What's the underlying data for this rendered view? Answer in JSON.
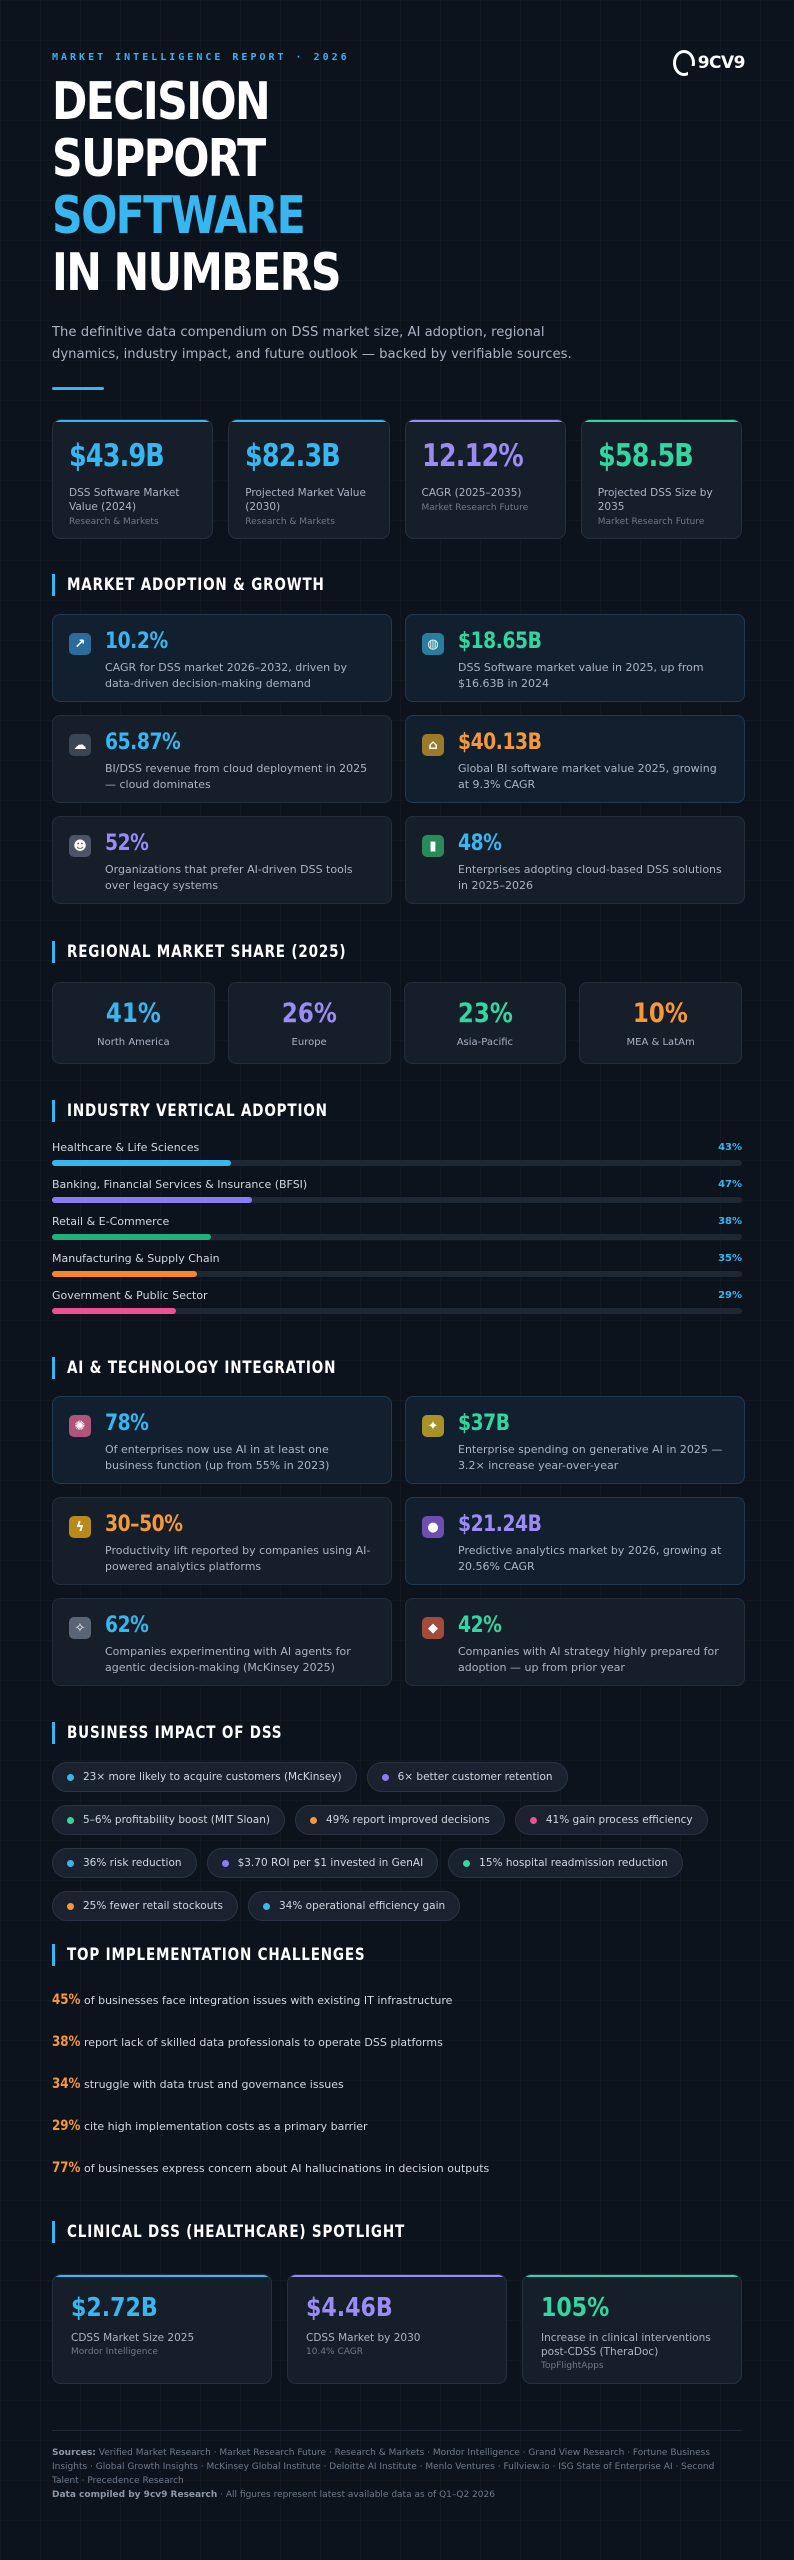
{
  "hero": {
    "eyebrow": "MARKET INTELLIGENCE REPORT · 2026",
    "logo_text": "9CV9",
    "title_line1": "DECISION",
    "title_line2": "SUPPORT",
    "title_line3": "SOFTWARE",
    "title_line4": "IN NUMBERS",
    "subtitle": "The definitive data compendium on DSS market size, AI adoption, regional dynamics, industry impact, and future outlook — backed by verifiable sources."
  },
  "kpis": [
    {
      "value": "$43.9B",
      "label": "DSS Software Market Value (2024)",
      "source": "Research & Markets",
      "color": "#38b6ef"
    },
    {
      "value": "$82.3B",
      "label": "Projected Market Value (2030)",
      "source": "Research & Markets",
      "color": "#38b6ef"
    },
    {
      "value": "12.12%",
      "label": "CAGR (2025–2035)",
      "source": "Market Research Future",
      "color": "#9b8cf5"
    },
    {
      "value": "$58.5B",
      "label": "Projected DSS Size by 2035",
      "source": "Market Research Future",
      "color": "#33d6a0"
    }
  ],
  "sections": {
    "adoption": "MARKET ADOPTION & GROWTH",
    "regional": "REGIONAL MARKET SHARE (2025)",
    "industry": "INDUSTRY VERTICAL ADOPTION",
    "ai": "AI & TECHNOLOGY INTEGRATION",
    "impact": "BUSINESS IMPACT OF DSS",
    "challenges": "TOP IMPLEMENTATION CHALLENGES",
    "clinical": "CLINICAL DSS (HEALTHCARE) SPOTLIGHT"
  },
  "adoption": [
    {
      "icon": "chart-up-icon",
      "value": "10.2%",
      "text": "CAGR for DSS market 2026–2032, driven by data-driven decision-making demand",
      "color": "#38b6ef"
    },
    {
      "icon": "globe-icon",
      "value": "$18.65B",
      "text": "DSS Software market value in 2025, up from $16.63B in 2024",
      "color": "#33d6a0"
    },
    {
      "icon": "cloud-icon",
      "value": "65.87%",
      "text": "BI/DSS revenue from cloud deployment in 2025 — cloud dominates",
      "color": "#38b6ef"
    },
    {
      "icon": "bank-icon",
      "value": "$40.13B",
      "text": "Global BI software market value 2025, growing at 9.3% CAGR",
      "color": "#f5983a"
    },
    {
      "icon": "robot-icon",
      "value": "52%",
      "text": "Organizations that prefer AI-driven DSS tools over legacy systems",
      "color": "#9b8cf5"
    },
    {
      "icon": "bar-chart-icon",
      "value": "48%",
      "text": "Enterprises adopting cloud-based DSS solutions in 2025–2026",
      "color": "#38b6ef"
    }
  ],
  "regions": [
    {
      "value": "41%",
      "label": "North America",
      "color": "#38b6ef"
    },
    {
      "value": "26%",
      "label": "Europe",
      "color": "#9b8cf5"
    },
    {
      "value": "23%",
      "label": "Asia-Pacific",
      "color": "#33d6a0"
    },
    {
      "value": "10%",
      "label": "MEA & LatAm",
      "color": "#f5983a"
    }
  ],
  "industries": [
    {
      "label": "Healthcare & Life Sciences",
      "pct_text": "43%",
      "pct": 0.26,
      "color": "#38b6ef"
    },
    {
      "label": "Banking, Financial Services & Insurance (BFSI)",
      "pct_text": "47%",
      "pct": 0.29,
      "color": "#8b7cf2"
    },
    {
      "label": "Retail & E-Commerce",
      "pct_text": "38%",
      "pct": 0.23,
      "color": "#22b07d"
    },
    {
      "label": "Manufacturing & Supply Chain",
      "pct_text": "35%",
      "pct": 0.21,
      "color": "#f5862a"
    },
    {
      "label": "Government & Public Sector",
      "pct_text": "29%",
      "pct": 0.18,
      "color": "#ef4f93"
    }
  ],
  "ai": [
    {
      "icon": "brain-icon",
      "value": "78%",
      "text": "Of enterprises now use AI in at least one business function (up from 55% in 2023)",
      "color": "#38b6ef"
    },
    {
      "icon": "lightbulb-icon",
      "value": "$37B",
      "text": "Enterprise spending on generative AI in 2025 — 3.2× increase year-over-year",
      "color": "#33d6a0"
    },
    {
      "icon": "lightning-icon",
      "value": "30–50%",
      "text": "Productivity lift reported by companies using AI-powered analytics platforms",
      "color": "#f5983a"
    },
    {
      "icon": "crystal-ball-icon",
      "value": "$21.24B",
      "text": "Predictive analytics market by 2026, growing at 20.56% CAGR",
      "color": "#9b8cf5"
    },
    {
      "icon": "satellite-icon",
      "value": "62%",
      "text": "Companies experimenting with AI agents for agentic decision-making (McKinsey 2025)",
      "color": "#38b6ef"
    },
    {
      "icon": "shield-icon",
      "value": "42%",
      "text": "Companies with AI strategy highly prepared for adoption — up from prior year",
      "color": "#33d6a0"
    }
  ],
  "impacts": [
    {
      "text": "23× more likely to acquire customers (McKinsey)",
      "color": "#38b6ef"
    },
    {
      "text": "6× better customer retention",
      "color": "#8b7cf2"
    },
    {
      "text": "5–6% profitability boost (MIT Sloan)",
      "color": "#33d6a0"
    },
    {
      "text": "49% report improved decisions",
      "color": "#f5983a"
    },
    {
      "text": "41% gain process efficiency",
      "color": "#ef4f93"
    },
    {
      "text": "36% risk reduction",
      "color": "#38b6ef"
    },
    {
      "text": "$3.70 ROI per $1 invested in GenAI",
      "color": "#8b7cf2"
    },
    {
      "text": "15% hospital readmission reduction",
      "color": "#33d6a0"
    },
    {
      "text": "25% fewer retail stockouts",
      "color": "#f5983a"
    },
    {
      "text": "34% operational efficiency gain",
      "color": "#38b6ef"
    }
  ],
  "challenges": [
    {
      "pct": "45%",
      "text": "of businesses face integration issues with existing IT infrastructure"
    },
    {
      "pct": "38%",
      "text": "report lack of skilled data professionals to operate DSS platforms"
    },
    {
      "pct": "34%",
      "text": "struggle with data trust and governance issues"
    },
    {
      "pct": "29%",
      "text": "cite high implementation costs as a primary barrier"
    },
    {
      "pct": "77%",
      "text": "of businesses express concern about AI hallucinations in decision outputs"
    }
  ],
  "clinical": [
    {
      "value": "$2.72B",
      "label": "CDSS Market Size 2025",
      "source": "Mordor Intelligence",
      "color": "#38b6ef"
    },
    {
      "value": "$4.46B",
      "label": "CDSS Market by 2030",
      "source": "10.4% CAGR",
      "color": "#9b8cf5"
    },
    {
      "value": "105%",
      "label": "Increase in clinical interventions post-CDSS (TheraDoc)",
      "source": "TopFlightApps",
      "color": "#33d6a0"
    }
  ],
  "footer": {
    "sources_label": "Sources:",
    "sources": "Verified Market Research · Market Research Future · Research & Markets · Mordor Intelligence · Grand View Research · Fortune Business Insights · Global Growth Insights · McKinsey Global Institute · Deloitte AI Institute · Menlo Ventures · Fullview.io · ISG State of Enterprise AI · Second Talent · Precedence Research",
    "compiled_label": "Data compiled by 9cv9 Research",
    "compiled_note": " · All figures represent latest available data as of Q1–Q2 2026"
  }
}
